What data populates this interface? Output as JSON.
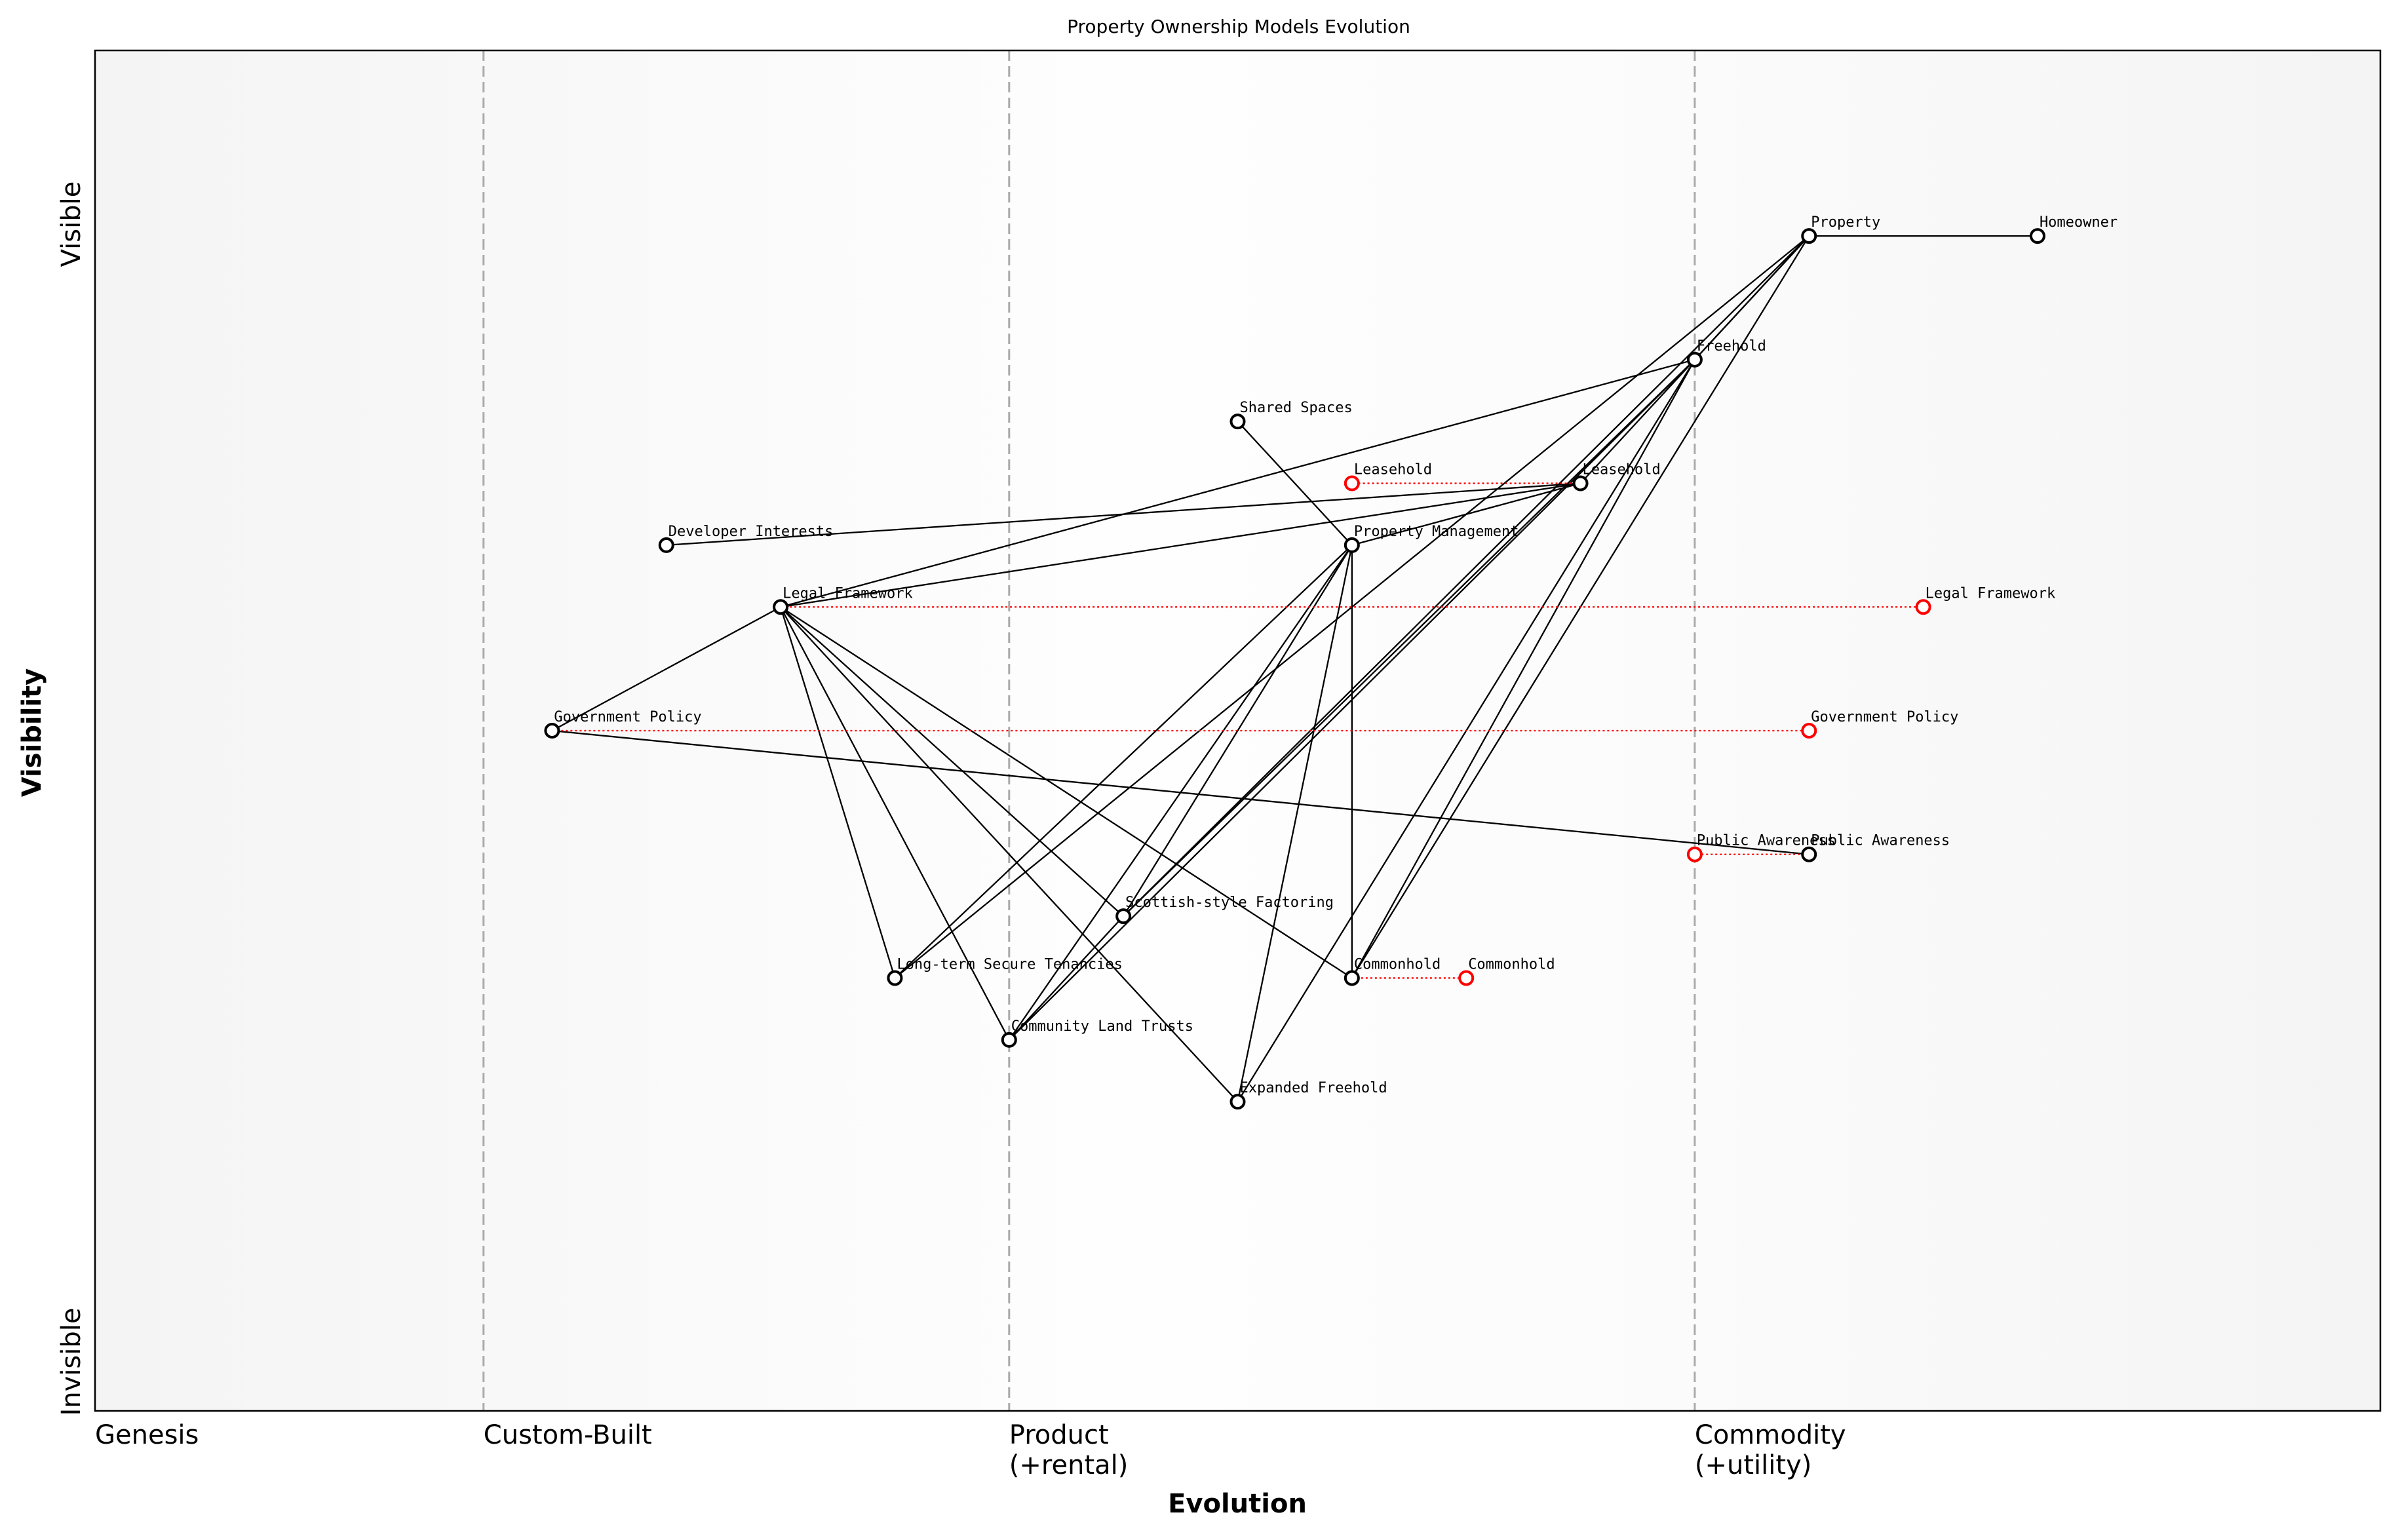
{
  "title": "Property Ownership Models Evolution",
  "xlabel": "Evolution",
  "ylabel": "Visibility",
  "y_ticks": {
    "top": "Visible",
    "bottom": "Invisible"
  },
  "stages": [
    {
      "label": "Genesis",
      "evolution": 0.0
    },
    {
      "label": "Custom-Built",
      "evolution": 0.17
    },
    {
      "label": "Product\n(+rental)",
      "evolution": 0.4
    },
    {
      "label": "Commodity\n(+utility)",
      "evolution": 0.7
    }
  ],
  "axes": {
    "xlim": [
      0,
      1
    ],
    "ylim": [
      0,
      1.1
    ]
  },
  "colors": {
    "node": "#000000",
    "evolve": "#ff0000",
    "stage_line": "#aaaaaa"
  },
  "components": [
    {
      "name": "Property",
      "evolution": 0.75,
      "visibility": 0.95
    },
    {
      "name": "Homeowner",
      "evolution": 0.85,
      "visibility": 0.95
    },
    {
      "name": "Freehold",
      "evolution": 0.7,
      "visibility": 0.85
    },
    {
      "name": "Shared Spaces",
      "evolution": 0.5,
      "visibility": 0.8
    },
    {
      "name": "Leasehold",
      "evolution": 0.65,
      "visibility": 0.75
    },
    {
      "name": "Property Management",
      "evolution": 0.55,
      "visibility": 0.7
    },
    {
      "name": "Developer Interests",
      "evolution": 0.25,
      "visibility": 0.7
    },
    {
      "name": "Legal Framework",
      "evolution": 0.3,
      "visibility": 0.65
    },
    {
      "name": "Government Policy",
      "evolution": 0.2,
      "visibility": 0.55
    },
    {
      "name": "Public Awareness",
      "evolution": 0.75,
      "visibility": 0.45
    },
    {
      "name": "Scottish-style Factoring",
      "evolution": 0.45,
      "visibility": 0.4
    },
    {
      "name": "Long-term Secure Tenancies",
      "evolution": 0.35,
      "visibility": 0.35
    },
    {
      "name": "Commonhold",
      "evolution": 0.55,
      "visibility": 0.35
    },
    {
      "name": "Community Land Trusts",
      "evolution": 0.4,
      "visibility": 0.3
    },
    {
      "name": "Expanded Freehold",
      "evolution": 0.5,
      "visibility": 0.25
    }
  ],
  "evolved": [
    {
      "name": "Leasehold",
      "from": 0.65,
      "to": 0.55,
      "visibility": 0.75
    },
    {
      "name": "Legal Framework",
      "from": 0.3,
      "to": 0.8,
      "visibility": 0.65
    },
    {
      "name": "Government Policy",
      "from": 0.2,
      "to": 0.75,
      "visibility": 0.55
    },
    {
      "name": "Public Awareness",
      "from": 0.75,
      "to": 0.7,
      "visibility": 0.45
    },
    {
      "name": "Commonhold",
      "from": 0.55,
      "to": 0.6,
      "visibility": 0.35
    }
  ],
  "links": [
    [
      "Property",
      "Homeowner"
    ],
    [
      "Property",
      "Freehold"
    ],
    [
      "Property",
      "Leasehold"
    ],
    [
      "Property",
      "Commonhold"
    ],
    [
      "Property",
      "Scottish-style Factoring"
    ],
    [
      "Property",
      "Long-term Secure Tenancies"
    ],
    [
      "Freehold",
      "Legal Framework"
    ],
    [
      "Freehold",
      "Commonhold"
    ],
    [
      "Freehold",
      "Scottish-style Factoring"
    ],
    [
      "Freehold",
      "Community Land Trusts"
    ],
    [
      "Freehold",
      "Expanded Freehold"
    ],
    [
      "Leasehold",
      "Developer Interests"
    ],
    [
      "Leasehold",
      "Legal Framework"
    ],
    [
      "Leasehold",
      "Property Management"
    ],
    [
      "Shared Spaces",
      "Property Management"
    ],
    [
      "Property Management",
      "Long-term Secure Tenancies"
    ],
    [
      "Property Management",
      "Community Land Trusts"
    ],
    [
      "Property Management",
      "Scottish-style Factoring"
    ],
    [
      "Property Management",
      "Expanded Freehold"
    ],
    [
      "Property Management",
      "Commonhold"
    ],
    [
      "Legal Framework",
      "Government Policy"
    ],
    [
      "Legal Framework",
      "Long-term Secure Tenancies"
    ],
    [
      "Legal Framework",
      "Community Land Trusts"
    ],
    [
      "Legal Framework",
      "Scottish-style Factoring"
    ],
    [
      "Legal Framework",
      "Commonhold"
    ],
    [
      "Legal Framework",
      "Expanded Freehold"
    ],
    [
      "Government Policy",
      "Public Awareness"
    ],
    [
      "Community Land Trusts",
      "Scottish-style Factoring"
    ]
  ]
}
